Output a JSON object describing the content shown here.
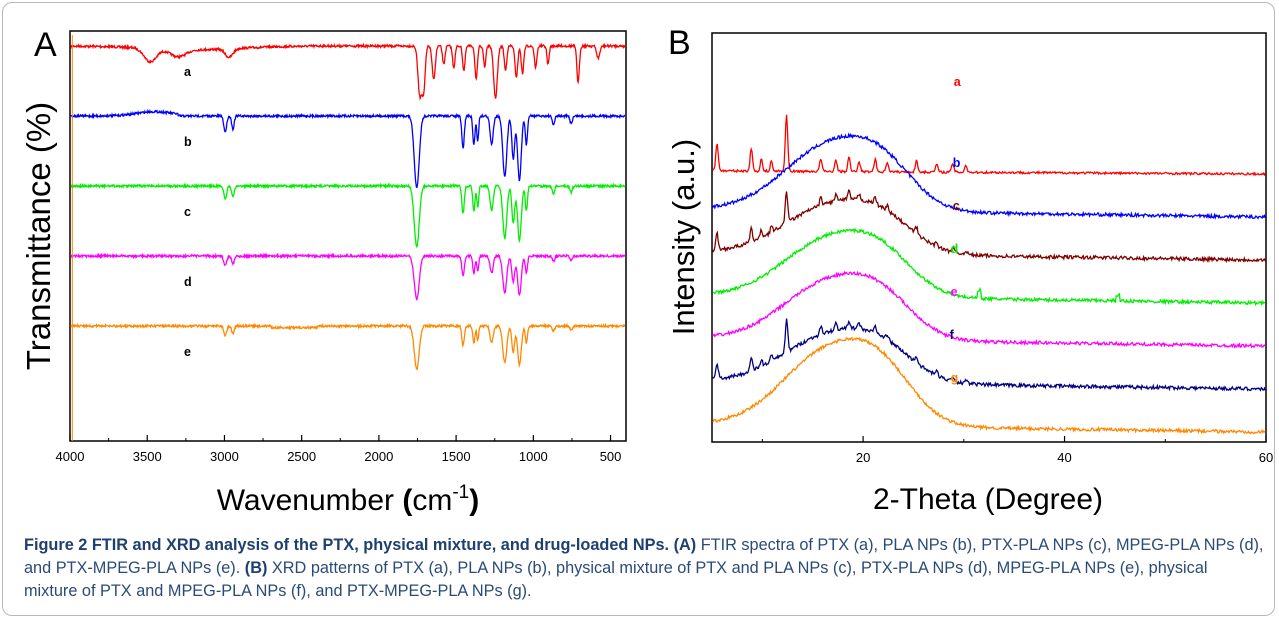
{
  "figure": {
    "caption_title": "Figure 2 FTIR and XRD analysis of the PTX, physical mixture, and drug-loaded NPs.",
    "caption_A_tag": "(A)",
    "caption_A_text": "FTIR spectra of PTX (a), PLA NPs (b), PTX-PLA NPs (c), MPEG-PLA NPs (d), and PTX-MPEG-PLA NPs (e).",
    "caption_B_tag": "(B)",
    "caption_B_text": "XRD patterns of PTX (a), PLA NPs (b), physical mixture of PTX and PLA NPs (c), PTX-PLA NPs (d), MPEG-PLA NPs (e), physical mixture of PTX and MPEG-PLA NPs (f), and PTX-MPEG-PLA NPs (g)."
  },
  "chart_data": [
    {
      "type": "line",
      "panel_label": "A",
      "xlabel_main": "Wavenumber ",
      "xlabel_unit_open": "(",
      "xlabel_unit": "cm",
      "xlabel_sup": "-1",
      "xlabel_unit_close": ")",
      "ylabel": "Transmittance (%)",
      "xlim": [
        4000,
        400
      ],
      "x_ticks": [
        4000,
        3500,
        3000,
        2500,
        2000,
        1500,
        1000,
        500
      ],
      "x_reversed": true,
      "y_ticks_shown": false,
      "grid": false,
      "series": [
        {
          "name": "a",
          "color": "#ff0000",
          "offset": 4,
          "depth": 1.0
        },
        {
          "name": "b",
          "color": "#0000ff",
          "offset": 3,
          "depth": 1.0
        },
        {
          "name": "c",
          "color": "#00ee00",
          "offset": 2,
          "depth": 0.85
        },
        {
          "name": "d",
          "color": "#ff00ff",
          "offset": 1,
          "depth": 0.6
        },
        {
          "name": "e",
          "color": "#ff8800",
          "offset": 0,
          "depth": 0.6
        }
      ]
    },
    {
      "type": "line",
      "panel_label": "B",
      "xlabel": "2-Theta (Degree)",
      "ylabel": "Intensity (a.u.)",
      "xlim": [
        5,
        60
      ],
      "x_ticks": [
        20,
        40,
        60
      ],
      "y_ticks_shown": false,
      "grid": false,
      "series": [
        {
          "name": "a",
          "color": "#ff0000",
          "offset": 6,
          "kind": "crystalline"
        },
        {
          "name": "b",
          "color": "#0000ff",
          "offset": 5,
          "kind": "amorphous"
        },
        {
          "name": "c",
          "color": "#800000",
          "offset": 4,
          "kind": "mixture"
        },
        {
          "name": "d",
          "color": "#00ee00",
          "offset": 3,
          "kind": "amorphous"
        },
        {
          "name": "e",
          "color": "#ff00ff",
          "offset": 2,
          "kind": "amorphous"
        },
        {
          "name": "f",
          "color": "#000080",
          "offset": 1,
          "kind": "mixture"
        },
        {
          "name": "g",
          "color": "#ff8800",
          "offset": 0,
          "kind": "amorphous"
        }
      ]
    }
  ]
}
